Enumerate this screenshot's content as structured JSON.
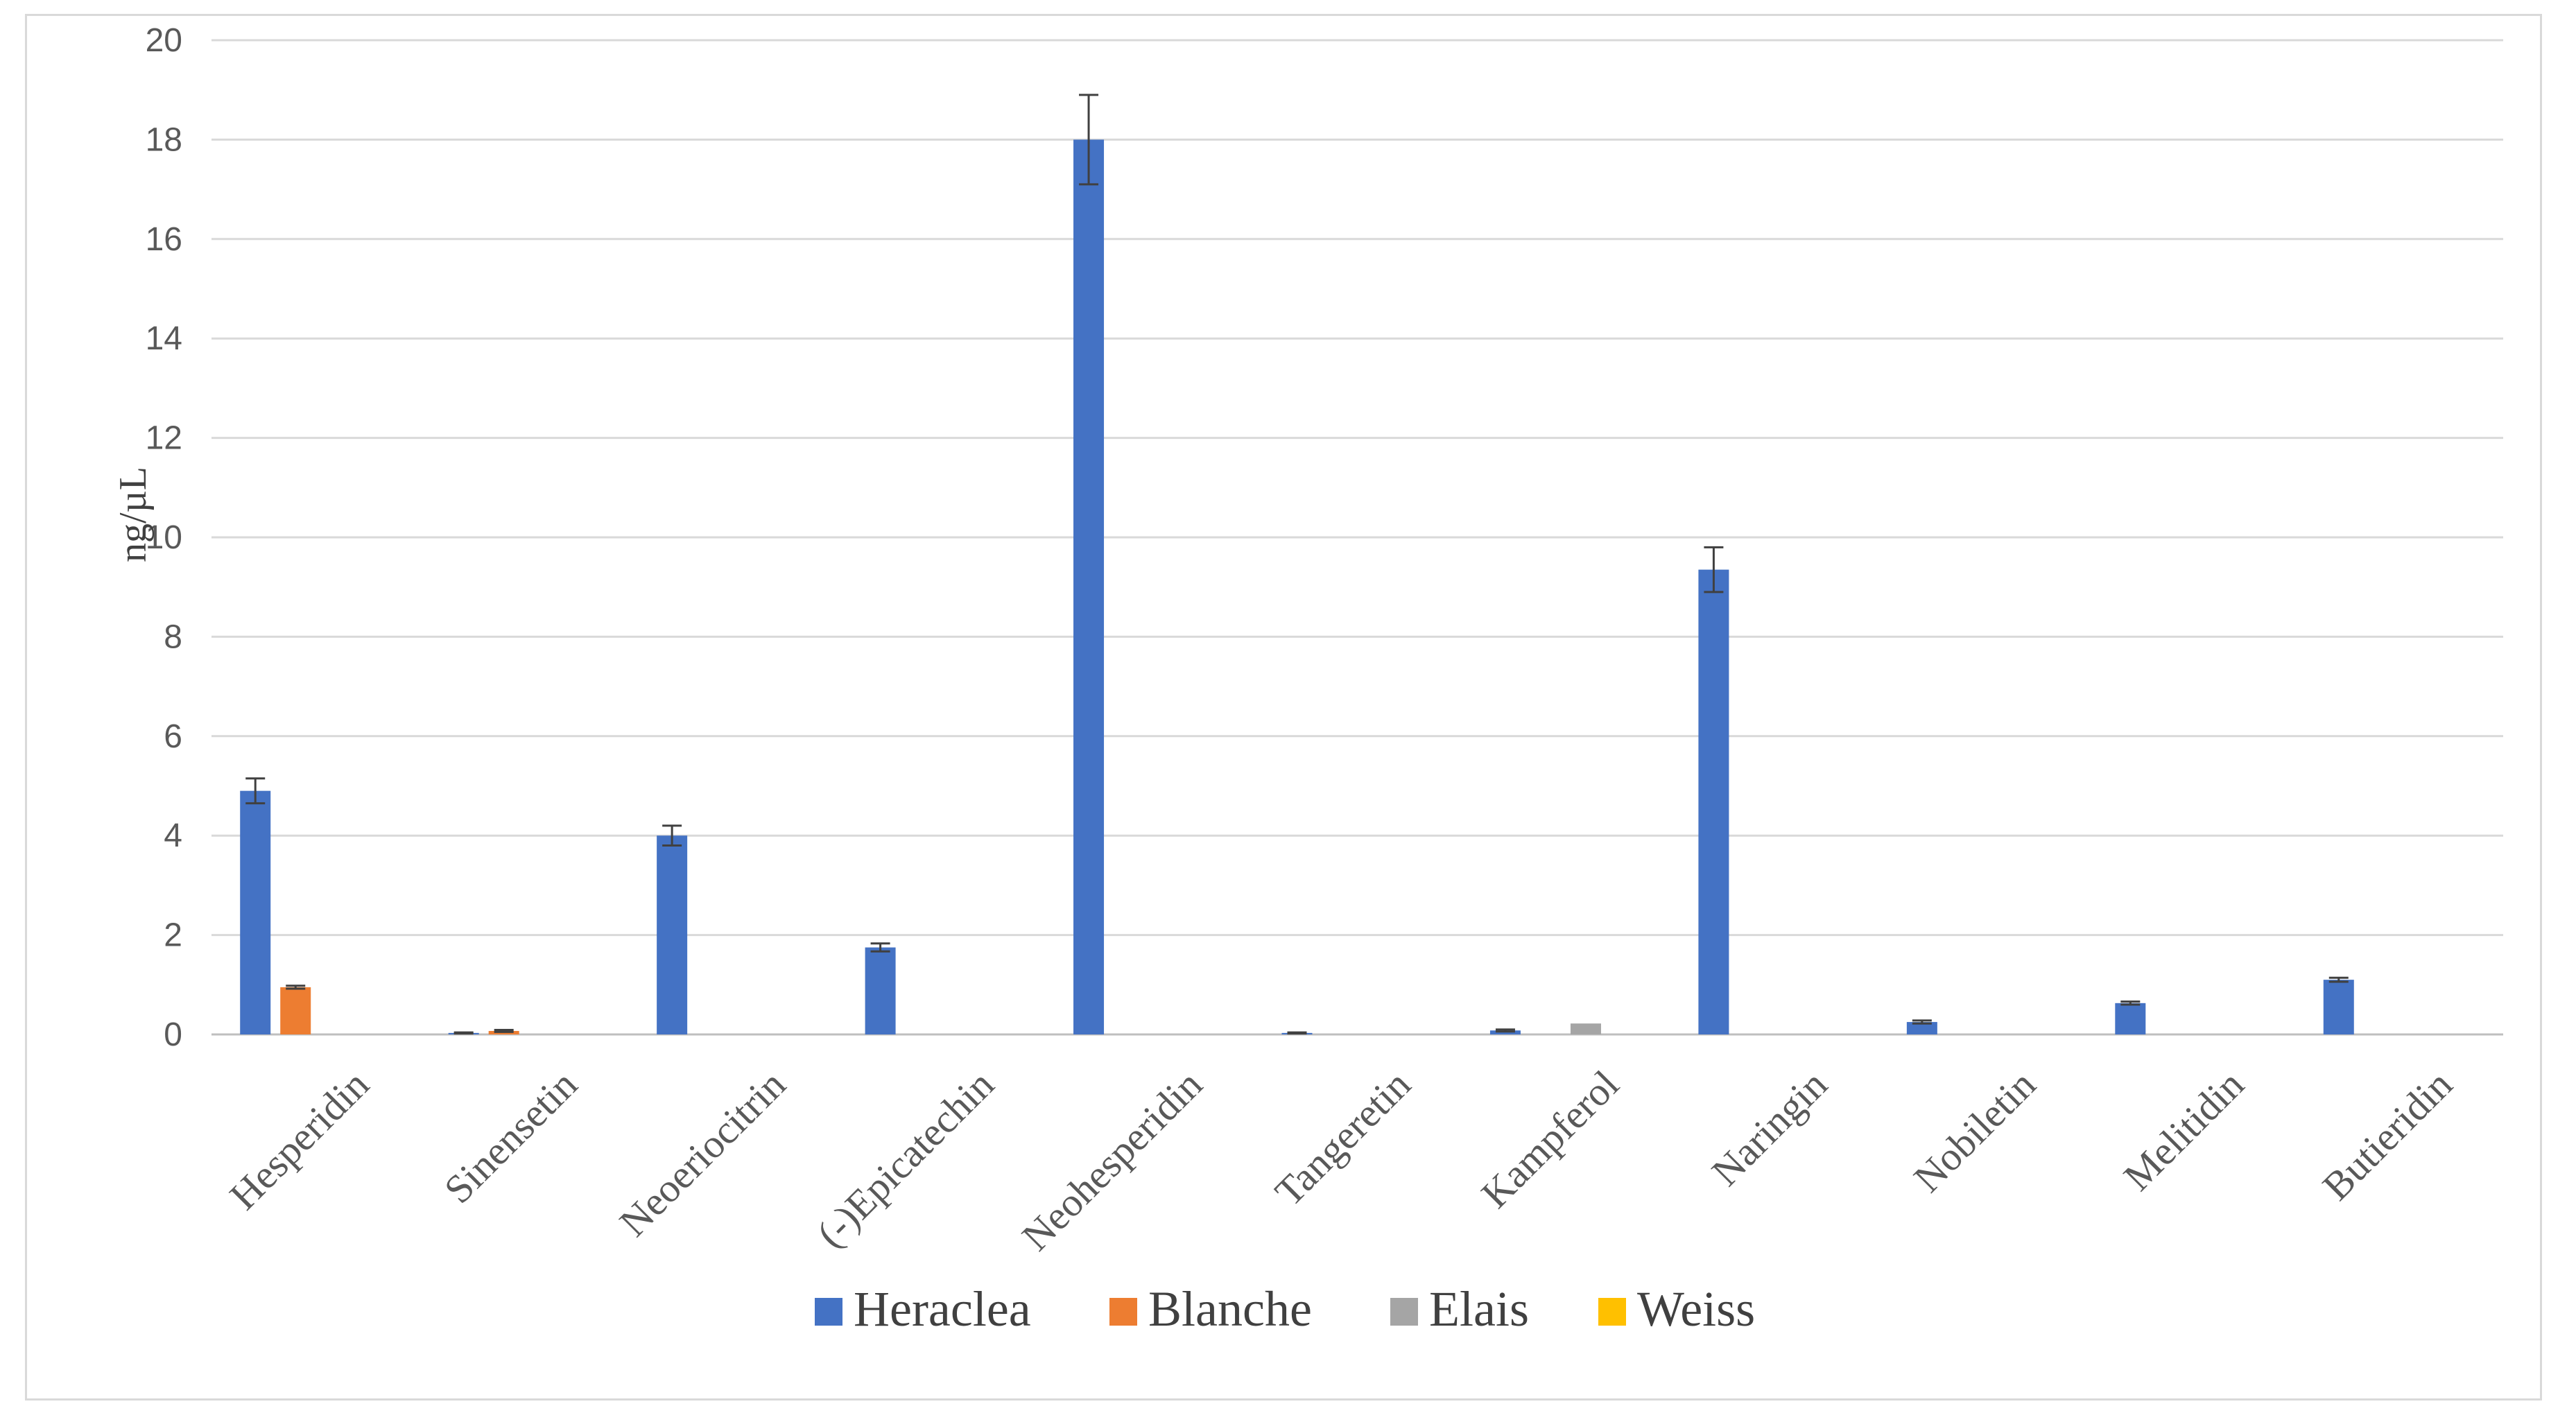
{
  "chart_data": {
    "type": "bar",
    "ylabel": "ng/µL",
    "ylim": [
      0,
      20
    ],
    "yticks": [
      0,
      2,
      4,
      6,
      8,
      10,
      12,
      14,
      16,
      18,
      20
    ],
    "grid": true,
    "legend_position": "bottom",
    "categories": [
      "Hesperidin",
      "Sinensetin",
      "Neoeriocitrin",
      "(-)Epicatechin",
      "Neohesperidin",
      "Tangeretin",
      "Kampferol",
      "Naringin",
      "Nobiletin",
      "Melitidin",
      "Butieridin"
    ],
    "series": [
      {
        "name": "Heraclea",
        "color": "#4472c4",
        "values": [
          4.9,
          0.03,
          4.0,
          1.75,
          18.0,
          0.03,
          0.08,
          9.35,
          0.25,
          0.63,
          1.1
        ],
        "errors": [
          0.25,
          0.01,
          0.2,
          0.08,
          0.9,
          0.01,
          0.02,
          0.45,
          0.03,
          0.03,
          0.04
        ]
      },
      {
        "name": "Blanche",
        "color": "#ed7d31",
        "values": [
          0.95,
          0.07,
          0,
          0,
          0,
          0,
          0,
          0,
          0,
          0,
          0
        ],
        "errors": [
          0.03,
          0.02,
          0,
          0,
          0,
          0,
          0,
          0,
          0,
          0,
          0
        ]
      },
      {
        "name": "Elais",
        "color": "#a5a5a5",
        "values": [
          0,
          0,
          0,
          0,
          0,
          0,
          0.22,
          0,
          0,
          0,
          0
        ],
        "errors": [
          0,
          0,
          0,
          0,
          0,
          0,
          0,
          0,
          0,
          0,
          0
        ]
      },
      {
        "name": "Weiss",
        "color": "#ffc000",
        "values": [
          0,
          0,
          0,
          0,
          0,
          0,
          0,
          0,
          0,
          0,
          0
        ],
        "errors": [
          0,
          0,
          0,
          0,
          0,
          0,
          0,
          0,
          0,
          0,
          0
        ]
      }
    ]
  }
}
